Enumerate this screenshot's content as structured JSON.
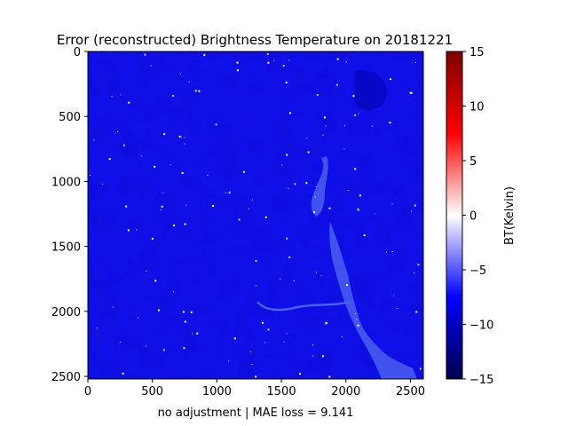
{
  "chart_data": {
    "type": "heatmap",
    "title": "Error (reconstructed) Brightness Temperature on 20181221",
    "xlabel": "no adjustment | MAE loss = 9.141",
    "ylabel": "",
    "xlim": [
      0,
      2600
    ],
    "ylim": [
      2520,
      0
    ],
    "x_ticks": [
      "0",
      "500",
      "1000",
      "1500",
      "2000",
      "2500"
    ],
    "y_ticks": [
      "0",
      "500",
      "1000",
      "1500",
      "2000",
      "2500"
    ],
    "colorbar": {
      "label": "BT(Kelvin)",
      "range": [
        -15,
        15
      ],
      "ticks": [
        "15",
        "10",
        "5",
        "0",
        "−5",
        "−10",
        "−15"
      ],
      "colormap": "seismic"
    },
    "dominant_value": -9,
    "grid": false
  }
}
